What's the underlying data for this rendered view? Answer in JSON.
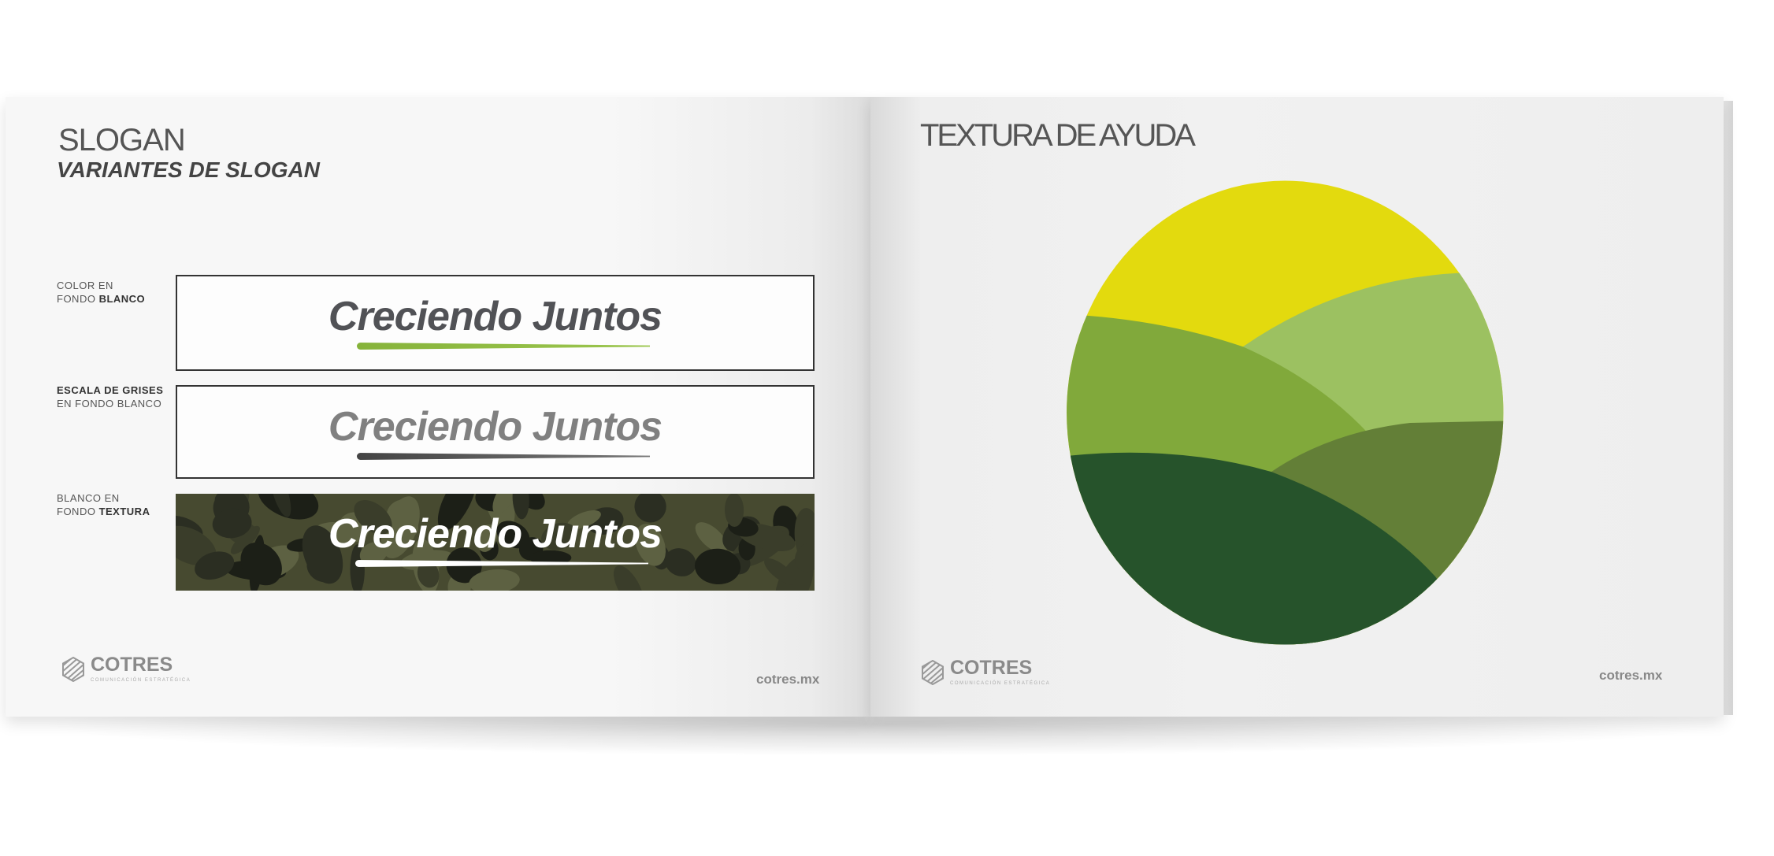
{
  "left_page": {
    "title": "SLOGAN",
    "subtitle": "VARIANTES DE SLOGAN",
    "variants": [
      {
        "label_line1": "COLOR EN",
        "label_line2_plain": "FONDO ",
        "label_line2_bold": "BLANCO",
        "slogan": "Creciendo Juntos",
        "text_color": "#515256",
        "underline_color": "#86b33a"
      },
      {
        "label_line1_bold": "ESCALA DE GRISES",
        "label_line2": "EN FONDO BLANCO",
        "slogan": "Creciendo Juntos",
        "text_color": "#808080",
        "underline_color": "#4a4a4a"
      },
      {
        "label_line1": "BLANCO EN",
        "label_line2_plain": "FONDO ",
        "label_line2_bold": "TEXTURA",
        "slogan": "Creciendo Juntos",
        "text_color": "#ffffff",
        "underline_color": "#ffffff",
        "background": "camouflage"
      }
    ],
    "logo": {
      "name": "COTRES",
      "tagline": "COMUNICACIÓN ESTRATÉGICA"
    },
    "url": "cotres.mx"
  },
  "right_page": {
    "title": "TEXTURA DE AYUDA",
    "texture_colors": [
      "#e3da0e",
      "#9cc161",
      "#81a93b",
      "#637f37",
      "#26532b"
    ],
    "logo": {
      "name": "COTRES",
      "tagline": "COMUNICACIÓN ESTRATÉGICA"
    },
    "url": "cotres.mx"
  }
}
